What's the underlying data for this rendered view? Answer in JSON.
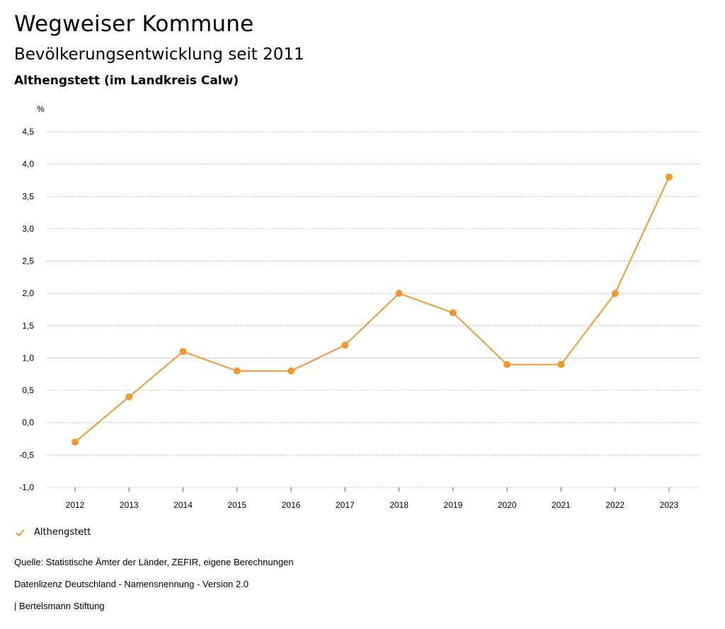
{
  "header": {
    "title": "Wegweiser Kommune",
    "subtitle": "Bevölkerungsentwicklung seit 2011",
    "region": "Althengstett (im Landkreis Calw)"
  },
  "chart_data": {
    "type": "line",
    "title": "Bevölkerungsentwicklung seit 2011",
    "xlabel": "",
    "ylabel": "%",
    "categories": [
      "2012",
      "2013",
      "2014",
      "2015",
      "2016",
      "2017",
      "2018",
      "2019",
      "2020",
      "2021",
      "2022",
      "2023"
    ],
    "series": [
      {
        "name": "Althengstett",
        "values": [
          -0.3,
          0.4,
          1.1,
          0.8,
          0.8,
          1.2,
          2.0,
          1.7,
          0.9,
          0.9,
          2.0,
          3.8
        ]
      }
    ],
    "ylim": [
      -1.0,
      4.5
    ],
    "yticks": [
      -1.0,
      -0.5,
      0.0,
      0.5,
      1.0,
      1.5,
      2.0,
      2.5,
      3.0,
      3.5,
      4.0,
      4.5
    ],
    "ytick_labels": [
      "-1,0",
      "-0,5",
      "0,0",
      "0,5",
      "1,0",
      "1,5",
      "2,0",
      "2,5",
      "3,0",
      "3,5",
      "4,0",
      "4,5"
    ],
    "grid": true,
    "legend_position": "bottom-left"
  },
  "colors": {
    "series": "#f0982f",
    "grid": "#999999",
    "axis": "#666666"
  },
  "legend": {
    "label": "Althengstett",
    "icon": "check-icon"
  },
  "footer": {
    "source": "Quelle: Statistische Ämter der Länder, ZEFIR, eigene Berechnungen",
    "license": "Datenlizenz Deutschland - Namensnennung - Version 2.0",
    "brand": "| Bertelsmann Stiftung"
  }
}
